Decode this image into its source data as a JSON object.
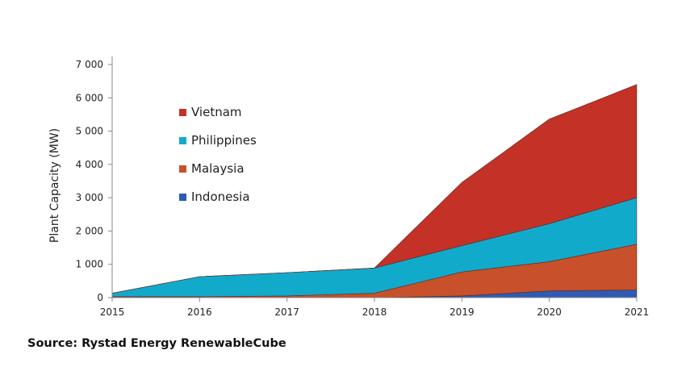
{
  "chart_data": {
    "type": "area",
    "stacked": true,
    "x": [
      "2015",
      "2016",
      "2017",
      "2018",
      "2019",
      "2020",
      "2021"
    ],
    "series": [
      {
        "name": "Indonesia",
        "color": "#2E5BB5",
        "values": [
          0,
          0,
          0,
          0,
          50,
          200,
          230
        ]
      },
      {
        "name": "Malaysia",
        "color": "#C8502A",
        "values": [
          30,
          30,
          50,
          130,
          720,
          880,
          1370
        ]
      },
      {
        "name": "Philippines",
        "color": "#12AACB",
        "values": [
          100,
          600,
          700,
          760,
          790,
          1140,
          1400
        ]
      },
      {
        "name": "Vietnam",
        "color": "#C43127",
        "values": [
          0,
          0,
          0,
          0,
          1900,
          3140,
          3400
        ]
      }
    ],
    "ylabel": "Plant Capacity (MW)",
    "xlabel": "",
    "ylim": [
      0,
      7000
    ],
    "yticks": [
      "0",
      "1 000",
      "2 000",
      "3 000",
      "4 000",
      "5 000",
      "6 000",
      "7 000"
    ],
    "grid": false,
    "legend_placement": "upper-left inside plot",
    "legend_order": [
      "Vietnam",
      "Philippines",
      "Malaysia",
      "Indonesia"
    ]
  },
  "source": "Source: Rystad Energy RenewableCube"
}
